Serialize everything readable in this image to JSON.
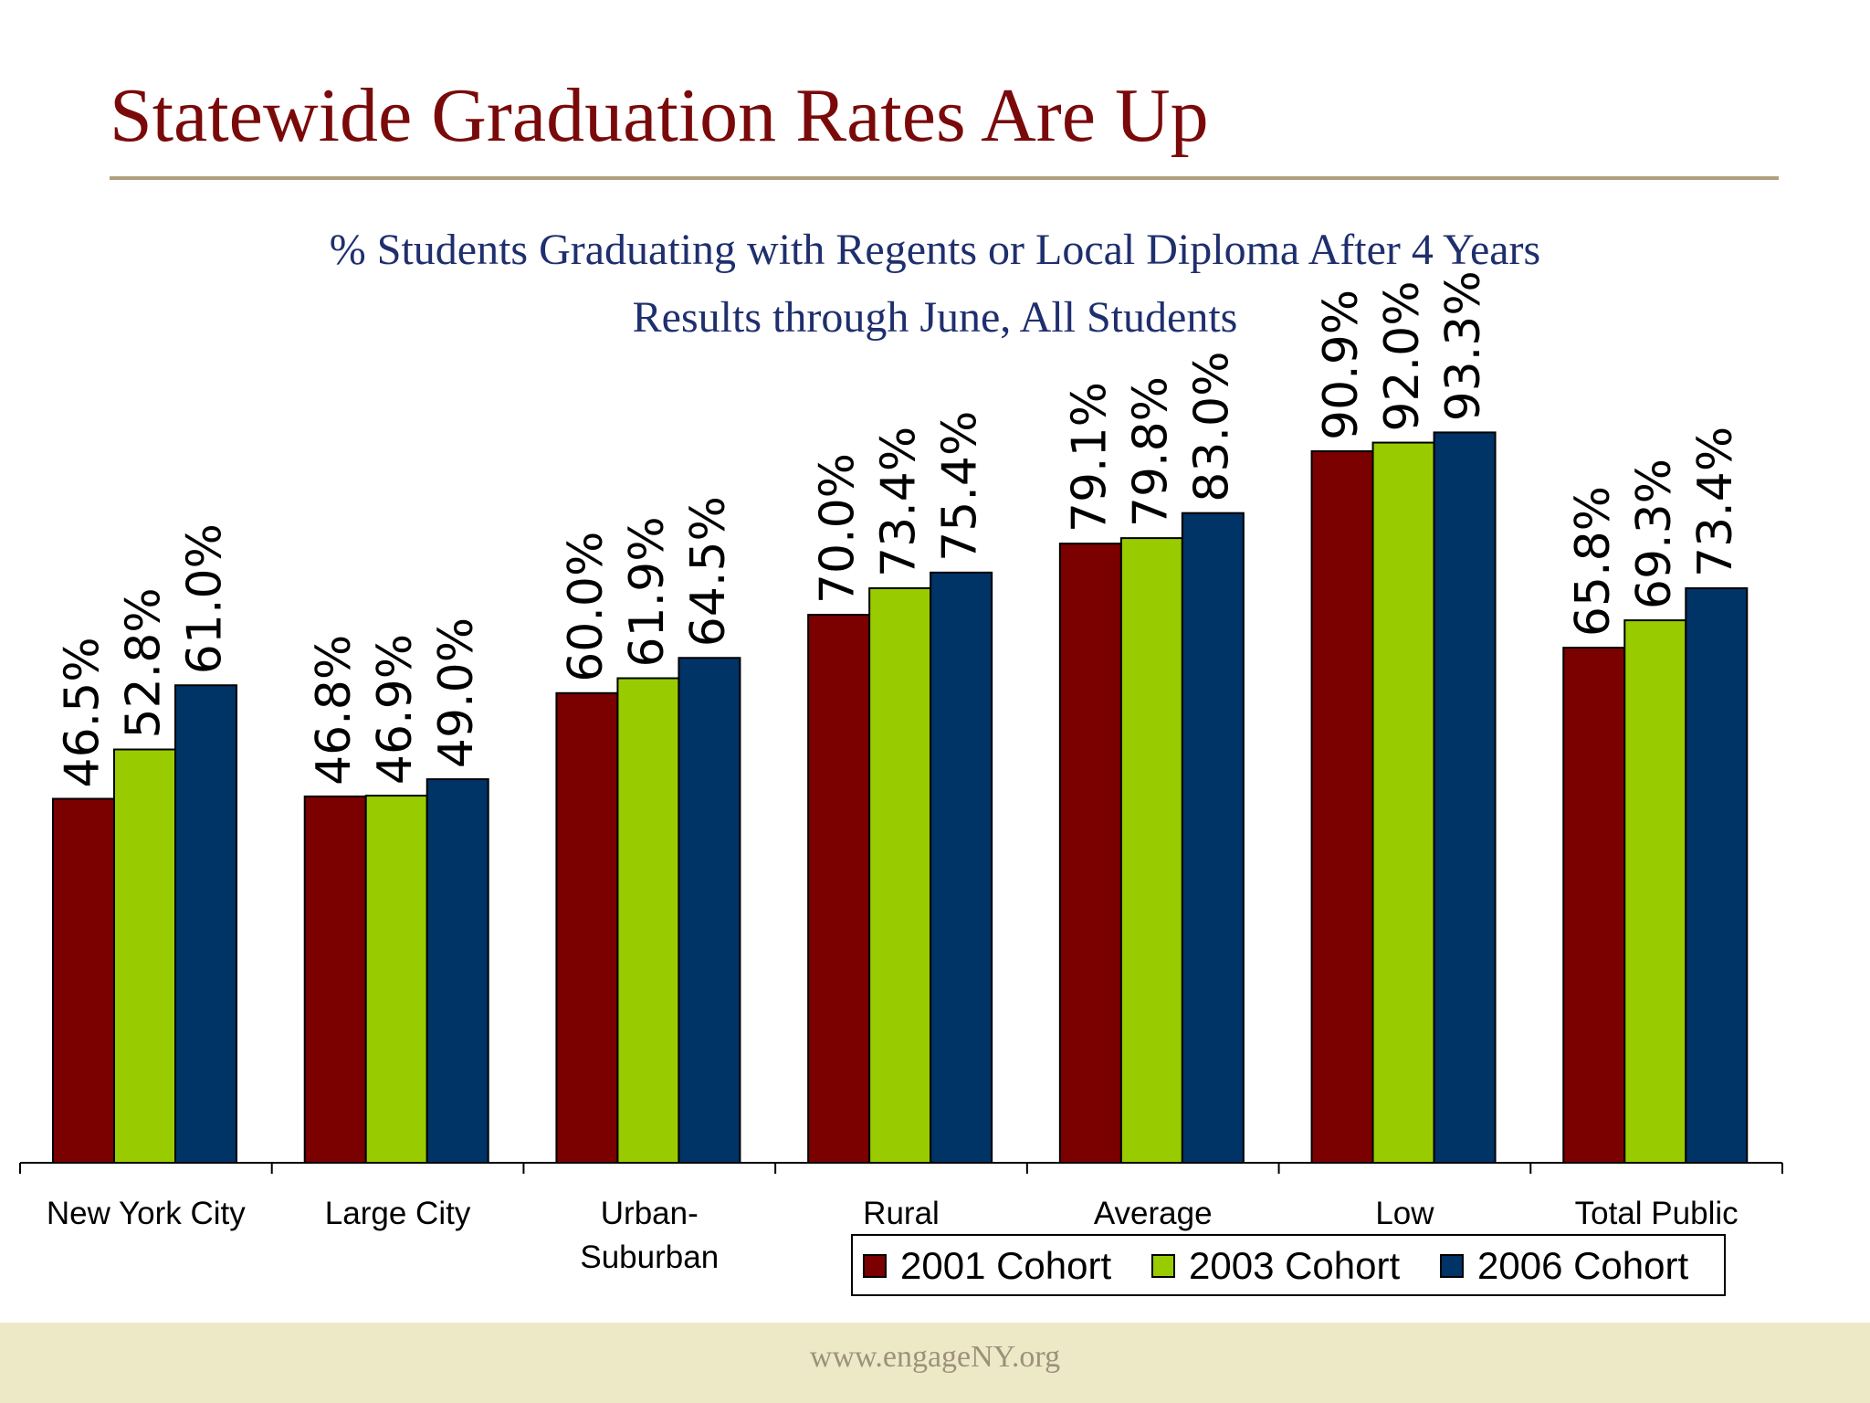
{
  "slide": {
    "title": "Statewide Graduation Rates Are Up",
    "subtitle_line1": "% Students Graduating with Regents or Local Diploma After 4 Years",
    "subtitle_line2": "Results through June, All Students",
    "footer_url": "www.engageNY.org"
  },
  "colors": {
    "title": "#7a0a0a",
    "subtitle": "#1f2f6e",
    "rule": "#b0a07e",
    "footer_band": "#ede9c7",
    "footer_text": "#9e917a"
  },
  "chart_data": {
    "type": "bar",
    "categories": [
      "New York City",
      "Large City",
      "Urban-\nSuburban",
      "Rural",
      "Average",
      "Low",
      "Total Public"
    ],
    "series": [
      {
        "name": "2001 Cohort",
        "color": "#7b0000",
        "values": [
          46.5,
          46.8,
          60.0,
          70.0,
          79.1,
          90.9,
          65.8
        ]
      },
      {
        "name": "2003 Cohort",
        "color": "#99cc00",
        "values": [
          52.8,
          46.9,
          61.9,
          73.4,
          79.8,
          92.0,
          69.3
        ]
      },
      {
        "name": "2006 Cohort",
        "color": "#003366",
        "values": [
          61.0,
          49.0,
          64.5,
          75.4,
          83.0,
          93.3,
          73.4
        ]
      }
    ],
    "data_labels": [
      [
        "46.5%",
        "46.8%",
        "60.0%",
        "70.0%",
        "79.1%",
        "90.9%",
        "65.8%"
      ],
      [
        "52.8%",
        "46.9%",
        "61.9%",
        "73.4%",
        "79.8%",
        "92.0%",
        "69.3%"
      ],
      [
        "61.0%",
        "49.0%",
        "64.5%",
        "75.4%",
        "83.0%",
        "93.3%",
        "73.4%"
      ]
    ],
    "ylim": [
      0,
      100
    ],
    "xlabel": "",
    "ylabel": "",
    "grid": false,
    "legend_position": "bottom-right"
  }
}
